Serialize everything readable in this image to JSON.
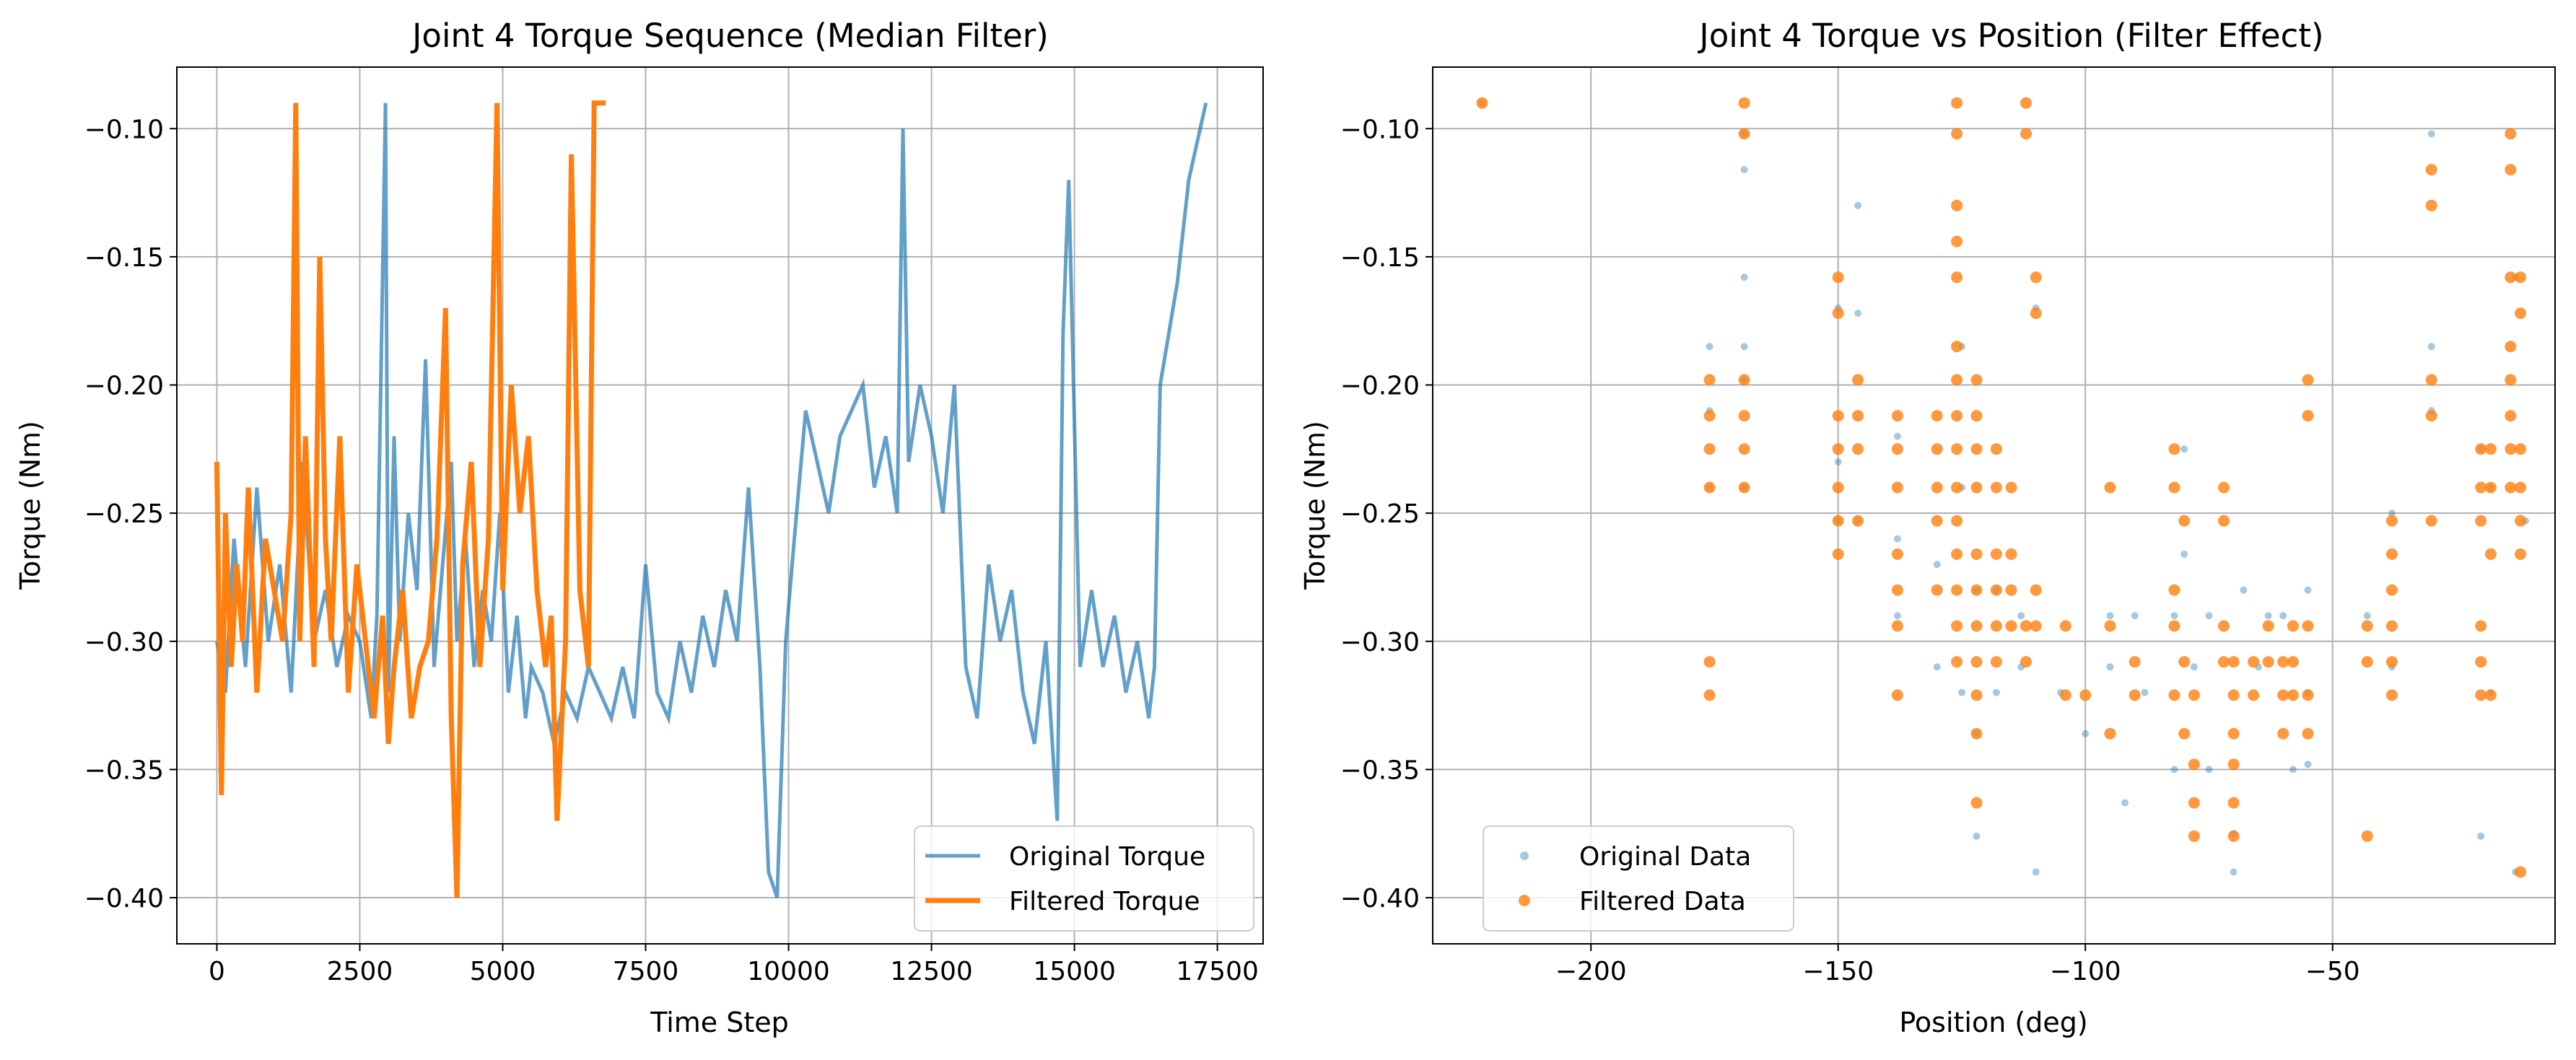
{
  "chart_data": [
    {
      "type": "line",
      "title": "Joint 4 Torque Sequence (Median Filter)",
      "xlabel": "Time Step",
      "ylabel": "Torque (Nm)",
      "xlim": [
        -700,
        18300
      ],
      "ylim": [
        -0.418,
        -0.076
      ],
      "xticks": [
        0,
        2500,
        5000,
        7500,
        10000,
        12500,
        15000,
        17500
      ],
      "xtick_labels": [
        "0",
        "2500",
        "5000",
        "7500",
        "10000",
        "12500",
        "15000",
        "17500"
      ],
      "yticks": [
        -0.4,
        -0.35,
        -0.3,
        -0.25,
        -0.2,
        -0.15,
        -0.1
      ],
      "ytick_labels": [
        "−0.40",
        "−0.35",
        "−0.30",
        "−0.25",
        "−0.20",
        "−0.15",
        "−0.10"
      ],
      "grid": true,
      "legend": "lower-right",
      "series": [
        {
          "name": "Original Torque",
          "color": "#1f77b4",
          "x": [
            0,
            150,
            300,
            500,
            700,
            900,
            1100,
            1300,
            1500,
            1700,
            1900,
            2100,
            2300,
            2500,
            2700,
            2800,
            2950,
            3000,
            3100,
            3200,
            3350,
            3500,
            3650,
            3800,
            3950,
            4100,
            4200,
            4350,
            4500,
            4650,
            4800,
            4950,
            5100,
            5250,
            5400,
            5500,
            5700,
            5900,
            6100,
            6300,
            6500,
            6700,
            6900,
            7100,
            7300,
            7500,
            7700,
            7900,
            8100,
            8300,
            8500,
            8700,
            8900,
            9100,
            9300,
            9500,
            9650,
            9800,
            9950,
            10100,
            10300,
            10500,
            10700,
            10900,
            11100,
            11300,
            11500,
            11700,
            11900,
            12000,
            12100,
            12300,
            12500,
            12700,
            12900,
            13100,
            13300,
            13500,
            13700,
            13900,
            14100,
            14300,
            14500,
            14700,
            14800,
            14900,
            15100,
            15300,
            15500,
            15700,
            15900,
            16100,
            16300,
            16400,
            16500,
            16800,
            17000,
            17300
          ],
          "y": [
            -0.3,
            -0.32,
            -0.26,
            -0.31,
            -0.24,
            -0.3,
            -0.27,
            -0.32,
            -0.23,
            -0.3,
            -0.28,
            -0.31,
            -0.29,
            -0.3,
            -0.33,
            -0.29,
            -0.09,
            -0.32,
            -0.22,
            -0.3,
            -0.25,
            -0.28,
            -0.19,
            -0.31,
            -0.27,
            -0.23,
            -0.3,
            -0.26,
            -0.31,
            -0.28,
            -0.3,
            -0.25,
            -0.32,
            -0.29,
            -0.33,
            -0.31,
            -0.32,
            -0.34,
            -0.32,
            -0.33,
            -0.31,
            -0.32,
            -0.33,
            -0.31,
            -0.33,
            -0.27,
            -0.32,
            -0.33,
            -0.3,
            -0.32,
            -0.29,
            -0.31,
            -0.28,
            -0.3,
            -0.24,
            -0.31,
            -0.39,
            -0.4,
            -0.3,
            -0.26,
            -0.21,
            -0.23,
            -0.25,
            -0.22,
            -0.21,
            -0.2,
            -0.24,
            -0.22,
            -0.25,
            -0.1,
            -0.23,
            -0.2,
            -0.22,
            -0.25,
            -0.2,
            -0.31,
            -0.33,
            -0.27,
            -0.3,
            -0.28,
            -0.32,
            -0.34,
            -0.3,
            -0.37,
            -0.18,
            -0.12,
            -0.31,
            -0.28,
            -0.31,
            -0.29,
            -0.32,
            -0.3,
            -0.33,
            -0.31,
            -0.2,
            -0.16,
            -0.12,
            -0.09
          ]
        },
        {
          "name": "Filtered Torque",
          "color": "#ff7f0e",
          "x": [
            0,
            80,
            150,
            250,
            350,
            450,
            550,
            700,
            850,
            1000,
            1150,
            1300,
            1380,
            1450,
            1550,
            1700,
            1800,
            1900,
            2000,
            2150,
            2300,
            2450,
            2600,
            2750,
            2900,
            3000,
            3100,
            3250,
            3400,
            3550,
            3700,
            3850,
            4000,
            4100,
            4200,
            4300,
            4450,
            4600,
            4750,
            4900,
            5000,
            5150,
            5300,
            5450,
            5600,
            5750,
            5850,
            5950,
            6100,
            6200,
            6350,
            6500,
            6600,
            6800
          ],
          "y": [
            -0.23,
            -0.36,
            -0.25,
            -0.31,
            -0.27,
            -0.3,
            -0.24,
            -0.32,
            -0.26,
            -0.28,
            -0.3,
            -0.25,
            -0.09,
            -0.3,
            -0.22,
            -0.31,
            -0.15,
            -0.26,
            -0.3,
            -0.22,
            -0.32,
            -0.27,
            -0.3,
            -0.33,
            -0.29,
            -0.34,
            -0.31,
            -0.28,
            -0.33,
            -0.31,
            -0.3,
            -0.26,
            -0.17,
            -0.33,
            -0.4,
            -0.27,
            -0.23,
            -0.31,
            -0.26,
            -0.09,
            -0.28,
            -0.2,
            -0.25,
            -0.22,
            -0.28,
            -0.31,
            -0.29,
            -0.37,
            -0.3,
            -0.11,
            -0.28,
            -0.31,
            -0.09,
            -0.09
          ]
        }
      ]
    },
    {
      "type": "scatter",
      "title": "Joint 4 Torque vs Position (Filter Effect)",
      "xlabel": "Position (deg)",
      "ylabel": "Torque (Nm)",
      "xlim": [
        -232,
        -5
      ],
      "ylim": [
        -0.418,
        -0.076
      ],
      "xticks": [
        -200,
        -150,
        -100,
        -50
      ],
      "xtick_labels": [
        "−200",
        "−150",
        "−100",
        "−50"
      ],
      "yticks": [
        -0.4,
        -0.35,
        -0.3,
        -0.25,
        -0.2,
        -0.15,
        -0.1
      ],
      "ytick_labels": [
        "−0.40",
        "−0.35",
        "−0.30",
        "−0.25",
        "−0.20",
        "−0.15",
        "−0.10"
      ],
      "grid": true,
      "legend": "lower-left",
      "series": [
        {
          "name": "Original Data",
          "color": "#1f77b4",
          "x": [
            -222,
            -176,
            -176,
            -176,
            -169,
            -169,
            -169,
            -169,
            -169,
            -169,
            -150,
            -150,
            -150,
            -146,
            -146,
            -146,
            -138,
            -138,
            -138,
            -130,
            -130,
            -125,
            -125,
            -125,
            -122,
            -122,
            -122,
            -118,
            -118,
            -113,
            -113,
            -110,
            -110,
            -105,
            -100,
            -95,
            -95,
            -92,
            -90,
            -88,
            -82,
            -82,
            -80,
            -80,
            -78,
            -75,
            -75,
            -70,
            -70,
            -68,
            -65,
            -63,
            -60,
            -58,
            -55,
            -55,
            -55,
            -43,
            -38,
            -38,
            -30,
            -30,
            -30,
            -20,
            -20,
            -18,
            -18,
            -13,
            -13,
            -11
          ],
          "y": [
            -0.09,
            -0.185,
            -0.21,
            -0.24,
            -0.102,
            -0.116,
            -0.158,
            -0.185,
            -0.198,
            -0.24,
            -0.17,
            -0.23,
            -0.253,
            -0.13,
            -0.172,
            -0.253,
            -0.22,
            -0.26,
            -0.29,
            -0.27,
            -0.31,
            -0.185,
            -0.24,
            -0.32,
            -0.28,
            -0.336,
            -0.376,
            -0.28,
            -0.32,
            -0.29,
            -0.31,
            -0.39,
            -0.17,
            -0.32,
            -0.336,
            -0.29,
            -0.31,
            -0.363,
            -0.29,
            -0.32,
            -0.29,
            -0.35,
            -0.225,
            -0.266,
            -0.31,
            -0.29,
            -0.35,
            -0.375,
            -0.39,
            -0.28,
            -0.31,
            -0.29,
            -0.29,
            -0.35,
            -0.28,
            -0.32,
            -0.348,
            -0.29,
            -0.25,
            -0.31,
            -0.102,
            -0.185,
            -0.21,
            -0.225,
            -0.376,
            -0.24,
            -0.32,
            -0.158,
            -0.39,
            -0.253
          ]
        },
        {
          "name": "Filtered Data",
          "color": "#ff7f0e",
          "x": [
            -222,
            -176,
            -176,
            -176,
            -176,
            -176,
            -176,
            -169,
            -169,
            -169,
            -169,
            -169,
            -169,
            -150,
            -150,
            -150,
            -150,
            -150,
            -150,
            -150,
            -146,
            -146,
            -146,
            -146,
            -138,
            -138,
            -138,
            -138,
            -138,
            -138,
            -138,
            -130,
            -130,
            -130,
            -130,
            -130,
            -126,
            -126,
            -126,
            -126,
            -126,
            -126,
            -126,
            -126,
            -126,
            -126,
            -126,
            -126,
            -126,
            -126,
            -126,
            -122,
            -122,
            -122,
            -122,
            -122,
            -122,
            -122,
            -122,
            -122,
            -122,
            -122,
            -118,
            -118,
            -118,
            -118,
            -118,
            -118,
            -115,
            -115,
            -115,
            -115,
            -112,
            -112,
            -112,
            -112,
            -110,
            -110,
            -110,
            -110,
            -104,
            -104,
            -100,
            -95,
            -95,
            -95,
            -90,
            -90,
            -82,
            -82,
            -82,
            -82,
            -82,
            -80,
            -80,
            -80,
            -78,
            -78,
            -78,
            -78,
            -72,
            -72,
            -72,
            -72,
            -70,
            -70,
            -70,
            -70,
            -70,
            -70,
            -66,
            -66,
            -63,
            -63,
            -60,
            -60,
            -60,
            -58,
            -58,
            -58,
            -55,
            -55,
            -55,
            -55,
            -55,
            -43,
            -43,
            -43,
            -38,
            -38,
            -38,
            -38,
            -38,
            -38,
            -30,
            -30,
            -30,
            -30,
            -30,
            -20,
            -20,
            -20,
            -20,
            -20,
            -20,
            -18,
            -18,
            -18,
            -18,
            -14,
            -14,
            -14,
            -14,
            -14,
            -14,
            -14,
            -14,
            -12,
            -12,
            -12,
            -12,
            -12,
            -12,
            -12
          ],
          "y": [
            -0.09,
            -0.198,
            -0.212,
            -0.225,
            -0.24,
            -0.308,
            -0.321,
            -0.09,
            -0.102,
            -0.198,
            -0.212,
            -0.225,
            -0.24,
            -0.158,
            -0.172,
            -0.212,
            -0.225,
            -0.24,
            -0.253,
            -0.266,
            -0.198,
            -0.212,
            -0.225,
            -0.253,
            -0.212,
            -0.225,
            -0.24,
            -0.266,
            -0.28,
            -0.294,
            -0.321,
            -0.212,
            -0.225,
            -0.24,
            -0.253,
            -0.28,
            -0.09,
            -0.102,
            -0.13,
            -0.144,
            -0.158,
            -0.185,
            -0.198,
            -0.212,
            -0.225,
            -0.24,
            -0.253,
            -0.266,
            -0.28,
            -0.294,
            -0.308,
            -0.198,
            -0.212,
            -0.225,
            -0.24,
            -0.266,
            -0.28,
            -0.294,
            -0.308,
            -0.321,
            -0.336,
            -0.363,
            -0.225,
            -0.24,
            -0.266,
            -0.28,
            -0.294,
            -0.308,
            -0.24,
            -0.266,
            -0.28,
            -0.294,
            -0.09,
            -0.102,
            -0.294,
            -0.308,
            -0.158,
            -0.172,
            -0.28,
            -0.294,
            -0.294,
            -0.321,
            -0.321,
            -0.24,
            -0.294,
            -0.336,
            -0.308,
            -0.321,
            -0.225,
            -0.24,
            -0.28,
            -0.294,
            -0.321,
            -0.253,
            -0.308,
            -0.336,
            -0.321,
            -0.348,
            -0.363,
            -0.376,
            -0.24,
            -0.253,
            -0.294,
            -0.308,
            -0.308,
            -0.321,
            -0.336,
            -0.348,
            -0.363,
            -0.376,
            -0.308,
            -0.321,
            -0.294,
            -0.308,
            -0.308,
            -0.321,
            -0.336,
            -0.294,
            -0.308,
            -0.321,
            -0.198,
            -0.212,
            -0.294,
            -0.321,
            -0.336,
            -0.294,
            -0.308,
            -0.376,
            -0.253,
            -0.266,
            -0.28,
            -0.294,
            -0.308,
            -0.321,
            -0.116,
            -0.13,
            -0.198,
            -0.212,
            -0.253,
            -0.225,
            -0.24,
            -0.253,
            -0.294,
            -0.308,
            -0.321,
            -0.225,
            -0.24,
            -0.266,
            -0.321,
            -0.102,
            -0.116,
            -0.158,
            -0.185,
            -0.198,
            -0.212,
            -0.225,
            -0.24,
            -0.158,
            -0.172,
            -0.225,
            -0.24,
            -0.253,
            -0.266,
            -0.39
          ]
        }
      ]
    }
  ]
}
